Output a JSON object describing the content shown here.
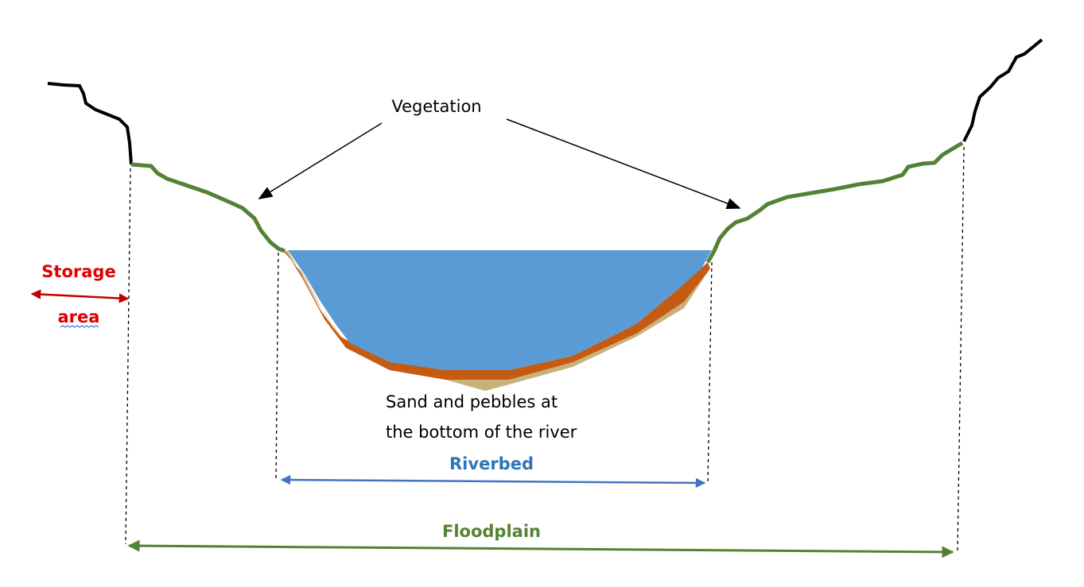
{
  "labels": {
    "vegetation": "Vegetation",
    "storage_area": [
      "Storage",
      "area"
    ],
    "sediment": [
      "Sand and pebbles at",
      "the bottom of the river"
    ],
    "riverbed": "Riverbed",
    "floodplain": "Floodplain"
  }
}
